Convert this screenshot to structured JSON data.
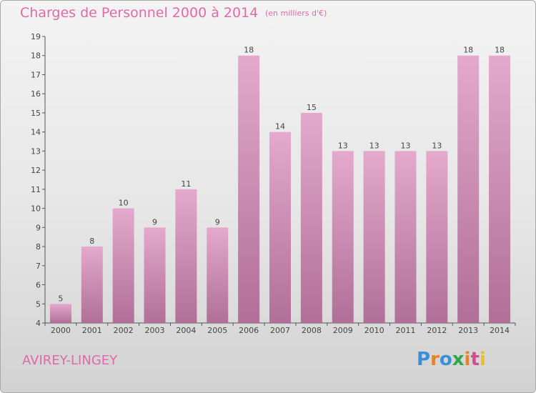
{
  "header": {
    "title": "Charges de Personnel 2000 à 2014",
    "subtitle": "(en milliers d'€)"
  },
  "footer": {
    "commune": "AVIREY-LINGEY",
    "brand_letters": [
      "P",
      "r",
      "o",
      "x",
      "i",
      "t",
      "i"
    ],
    "brand_colors": [
      "#3a8fd6",
      "#e8832a",
      "#3a8fd6",
      "#2aa84a",
      "#e8832a",
      "#d64a8f",
      "#e8c02a"
    ]
  },
  "colors": {
    "bar_top": "#e4a9cc",
    "bar_bottom": "#b06f98",
    "text_accent": "#e06aa8"
  },
  "chart_data": {
    "type": "bar",
    "title": "Charges de Personnel 2000 à 2014",
    "subtitle": "(en milliers d'€)",
    "categories": [
      "2000",
      "2001",
      "2002",
      "2003",
      "2004",
      "2005",
      "2006",
      "2007",
      "2008",
      "2009",
      "2010",
      "2011",
      "2012",
      "2013",
      "2014"
    ],
    "values": [
      5,
      8,
      10,
      9,
      11,
      9,
      18,
      14,
      15,
      13,
      13,
      13,
      13,
      18,
      18
    ],
    "ylim": [
      4,
      19
    ],
    "yticks": [
      4,
      5,
      6,
      7,
      8,
      9,
      10,
      11,
      12,
      13,
      14,
      15,
      16,
      17,
      18,
      19
    ],
    "grid": false,
    "legend": "none"
  }
}
